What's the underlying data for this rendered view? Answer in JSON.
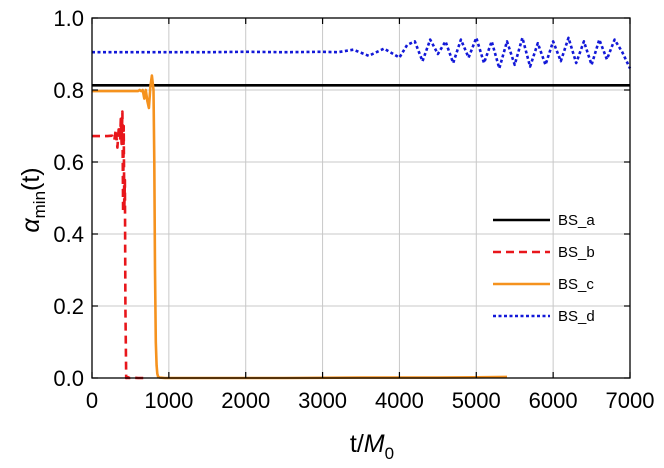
{
  "chart_data": {
    "type": "line",
    "xlabel": {
      "main": "t",
      "sep": "/",
      "sym": "M",
      "sub": "0"
    },
    "ylabel": {
      "sym": "α",
      "sub": "min",
      "arg": "(t)"
    },
    "xlim": [
      0,
      7000
    ],
    "ylim": [
      0,
      1.0
    ],
    "x_ticks": [
      0,
      1000,
      2000,
      3000,
      4000,
      5000,
      6000,
      7000
    ],
    "x_tick_labels": [
      "0",
      "1000",
      "2000",
      "3000",
      "4000",
      "5000",
      "6000",
      "7000"
    ],
    "y_ticks": [
      0,
      0.2,
      0.4,
      0.6,
      0.8,
      1.0
    ],
    "y_tick_labels": [
      "0.0",
      "0.2",
      "0.4",
      "0.6",
      "0.8",
      "1.0"
    ],
    "grid": true,
    "legend_position": "center-right",
    "series": [
      {
        "name": "BS_a",
        "color": "#000000",
        "dash": "solid",
        "x": [
          0,
          1000,
          2000,
          3000,
          4000,
          5000,
          6000,
          7000
        ],
        "y": [
          0.813,
          0.813,
          0.813,
          0.813,
          0.813,
          0.813,
          0.813,
          0.813
        ]
      },
      {
        "name": "BS_b",
        "color": "#e8161b",
        "dash": "dashed",
        "x": [
          0,
          200,
          260,
          290,
          310,
          330,
          350,
          365,
          375,
          385,
          395,
          405,
          412,
          420,
          428,
          435,
          445,
          460,
          470,
          480,
          520,
          600,
          700
        ],
        "y": [
          0.672,
          0.672,
          0.673,
          0.66,
          0.69,
          0.64,
          0.7,
          0.66,
          0.72,
          0.65,
          0.74,
          0.46,
          0.7,
          0.47,
          0.55,
          0.2,
          0.0,
          0.0,
          0.002,
          0.0,
          0.001,
          0.0,
          0.0
        ]
      },
      {
        "name": "BS_c",
        "color": "#f5921e",
        "dash": "solid",
        "x": [
          0,
          400,
          500,
          560,
          600,
          620,
          640,
          660,
          680,
          700,
          720,
          740,
          760,
          780,
          800,
          810,
          820,
          830,
          840,
          850,
          860,
          880,
          950,
          1500,
          2500,
          3500,
          4500,
          5000,
          5400
        ],
        "y": [
          0.797,
          0.797,
          0.797,
          0.797,
          0.797,
          0.8,
          0.797,
          0.8,
          0.776,
          0.8,
          0.77,
          0.75,
          0.81,
          0.84,
          0.8,
          0.6,
          0.3,
          0.1,
          0.035,
          0.012,
          0.004,
          0.001,
          0.0,
          0.0,
          0.0,
          0.001,
          0.001,
          0.002,
          0.003
        ]
      },
      {
        "name": "BS_d",
        "color": "#1218d8",
        "dash": "dotted",
        "x": [
          0,
          500,
          1000,
          1500,
          2000,
          2500,
          3000,
          3200,
          3400,
          3600,
          3800,
          4000,
          4100,
          4200,
          4300,
          4400,
          4500,
          4600,
          4700,
          4800,
          4900,
          5000,
          5100,
          5200,
          5300,
          5400,
          5500,
          5600,
          5700,
          5800,
          5900,
          6000,
          6100,
          6200,
          6300,
          6400,
          6500,
          6600,
          6700,
          6800,
          6900,
          7000
        ],
        "y": [
          0.905,
          0.905,
          0.905,
          0.905,
          0.906,
          0.905,
          0.906,
          0.905,
          0.912,
          0.895,
          0.915,
          0.89,
          0.925,
          0.935,
          0.88,
          0.94,
          0.9,
          0.935,
          0.875,
          0.94,
          0.89,
          0.945,
          0.875,
          0.935,
          0.86,
          0.935,
          0.87,
          0.945,
          0.865,
          0.93,
          0.87,
          0.935,
          0.88,
          0.945,
          0.875,
          0.935,
          0.87,
          0.94,
          0.885,
          0.94,
          0.905,
          0.86
        ]
      }
    ]
  }
}
